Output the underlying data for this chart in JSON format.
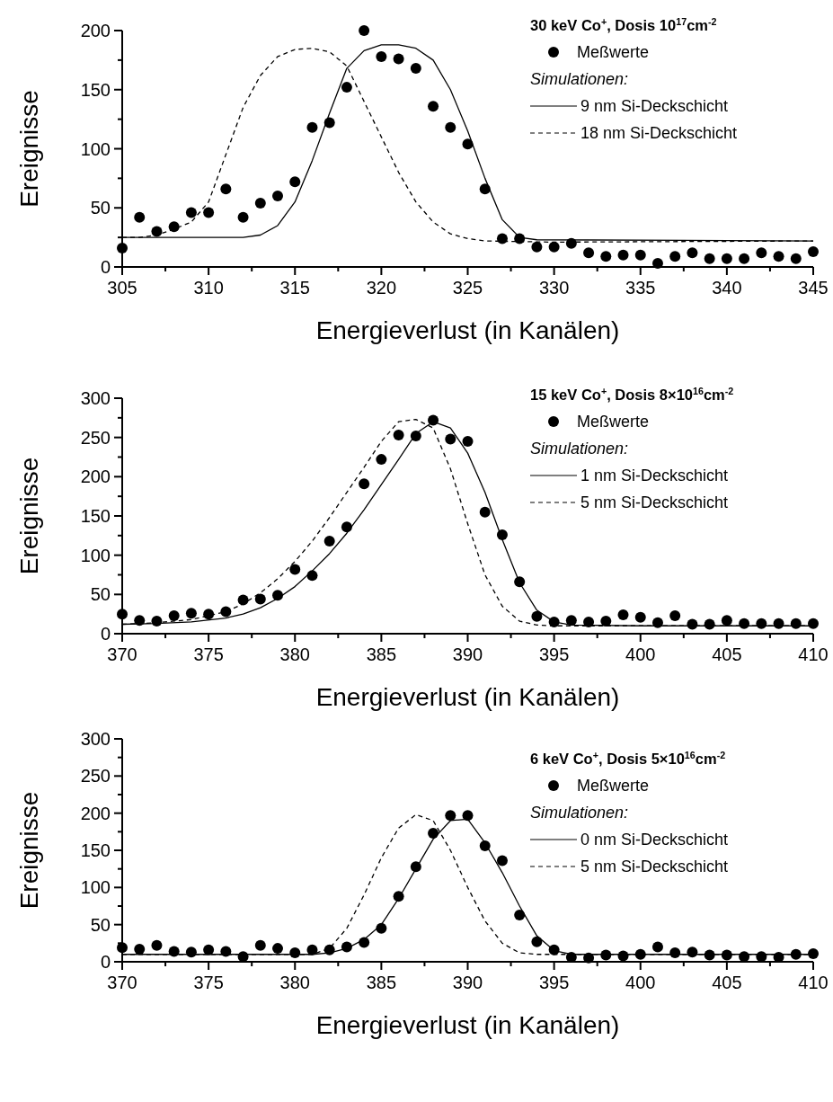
{
  "chart_data": [
    {
      "type": "scatter",
      "legend_title": "30 keV Co$^{+}$, Dosis 10$^{17}$cm$^{-2}$",
      "xlabel": "Energieverlust (in Kanälen)",
      "ylabel": "Ereignisse",
      "annotations": [
        "Simulationen:"
      ],
      "legend": "top right",
      "grid": false,
      "xlim": [
        305,
        345
      ],
      "ylim": [
        0,
        200
      ],
      "xticks": [
        305,
        {
          "value": 307.5,
          "label": null
        },
        310,
        {
          "value": 312.5,
          "label": null
        },
        315,
        {
          "value": 317.5,
          "label": null
        },
        320,
        {
          "value": 322.5,
          "label": null
        },
        325,
        {
          "value": 327.5,
          "label": null
        },
        330,
        {
          "value": 332.5,
          "label": null
        },
        335,
        {
          "value": 337.5,
          "label": null
        },
        340,
        {
          "value": 342.5,
          "label": null
        },
        345
      ],
      "yticks": [
        0,
        {
          "value": 25,
          "label": null
        },
        50,
        {
          "value": 75,
          "label": null
        },
        100,
        {
          "value": 125,
          "label": null
        },
        150,
        {
          "value": 175,
          "label": null
        },
        200
      ],
      "series": [
        {
          "name": "Meßwerte",
          "marker": "circle",
          "color": "#000000",
          "x": [
            305,
            306,
            307,
            308,
            309,
            310,
            311,
            312,
            313,
            314,
            315,
            316,
            317,
            318,
            319,
            320,
            321,
            322,
            323,
            324,
            325,
            326,
            327,
            328,
            329,
            330,
            331,
            332,
            333,
            334,
            335,
            336,
            337,
            338,
            339,
            340,
            341,
            342,
            343,
            344,
            345
          ],
          "values": [
            16,
            42,
            30,
            34,
            46,
            46,
            66,
            42,
            54,
            60,
            72,
            118,
            122,
            152,
            200,
            178,
            176,
            168,
            136,
            118,
            104,
            66,
            24,
            24,
            17,
            17,
            20,
            12,
            9,
            10,
            10,
            3,
            9,
            12,
            7,
            7,
            7,
            12,
            9,
            7,
            13
          ]
        },
        {
          "name": "9 nm Si-Deckschicht",
          "type": "line",
          "line_style": "solid",
          "marker": "none",
          "color": "#000000",
          "x": [
            305,
            312,
            313,
            314,
            315,
            316,
            317,
            318,
            319,
            320,
            321,
            322,
            323,
            324,
            325,
            326,
            327,
            328,
            329,
            345
          ],
          "values": [
            25,
            25,
            27,
            35,
            55,
            90,
            130,
            168,
            183,
            188,
            188,
            185,
            175,
            150,
            115,
            75,
            40,
            25,
            23,
            22
          ]
        },
        {
          "name": "18 nm Si-Deckschicht",
          "type": "line",
          "line_style": "dashed",
          "marker": "none",
          "color": "#000000",
          "x": [
            305,
            306,
            307,
            308,
            309,
            310,
            311,
            312,
            313,
            314,
            315,
            316,
            317,
            318,
            319,
            320,
            321,
            322,
            323,
            324,
            325,
            326,
            330,
            345
          ],
          "values": [
            25,
            25,
            27,
            32,
            38,
            55,
            95,
            135,
            162,
            178,
            184,
            185,
            182,
            170,
            140,
            110,
            80,
            55,
            38,
            28,
            24,
            22,
            21,
            22
          ]
        }
      ]
    },
    {
      "type": "scatter",
      "legend_title": "15 keV Co$^{+}$, Dosis 8×10$^{16}$cm$^{-2}$",
      "xlabel": "Energieverlust (in Kanälen)",
      "ylabel": "Ereignisse",
      "annotations": [
        "Simulationen:"
      ],
      "legend": "top right",
      "grid": false,
      "xlim": [
        370,
        410
      ],
      "ylim": [
        0,
        300
      ],
      "xticks": [
        370,
        {
          "value": 372.5,
          "label": null
        },
        375,
        {
          "value": 377.5,
          "label": null
        },
        380,
        {
          "value": 382.5,
          "label": null
        },
        385,
        {
          "value": 387.5,
          "label": null
        },
        390,
        {
          "value": 392.5,
          "label": null
        },
        395,
        {
          "value": 397.5,
          "label": null
        },
        400,
        {
          "value": 402.5,
          "label": null
        },
        405,
        {
          "value": 407.5,
          "label": null
        },
        410
      ],
      "yticks": [
        0,
        {
          "value": 25,
          "label": null
        },
        50,
        {
          "value": 75,
          "label": null
        },
        100,
        {
          "value": 125,
          "label": null
        },
        150,
        {
          "value": 175,
          "label": null
        },
        200,
        {
          "value": 225,
          "label": null
        },
        250,
        {
          "value": 275,
          "label": null
        },
        300
      ],
      "series": [
        {
          "name": "Meßwerte",
          "marker": "circle",
          "color": "#000000",
          "x": [
            370,
            371,
            372,
            373,
            374,
            375,
            376,
            377,
            378,
            379,
            380,
            381,
            382,
            383,
            384,
            385,
            386,
            387,
            388,
            389,
            390,
            391,
            392,
            393,
            394,
            395,
            396,
            397,
            398,
            399,
            400,
            401,
            402,
            403,
            404,
            405,
            406,
            407,
            408,
            409,
            410
          ],
          "values": [
            25,
            17,
            16,
            23,
            26,
            25,
            28,
            43,
            44,
            49,
            82,
            74,
            118,
            136,
            191,
            222,
            253,
            252,
            272,
            248,
            245,
            155,
            126,
            66,
            22,
            15,
            17,
            15,
            16,
            24,
            21,
            14,
            23,
            12,
            12,
            17,
            13,
            13,
            13,
            13,
            13
          ]
        },
        {
          "name": "1 nm Si-Deckschicht",
          "type": "line",
          "line_style": "solid",
          "marker": "none",
          "color": "#000000",
          "x": [
            370,
            372,
            374,
            376,
            377,
            378,
            379,
            380,
            381,
            382,
            383,
            384,
            385,
            386,
            387,
            388,
            389,
            390,
            391,
            392,
            393,
            394,
            395,
            396,
            400,
            410
          ],
          "values": [
            12,
            13,
            15,
            20,
            25,
            33,
            45,
            60,
            80,
            102,
            128,
            158,
            190,
            222,
            255,
            270,
            262,
            230,
            180,
            120,
            65,
            30,
            15,
            11,
            10,
            10
          ]
        },
        {
          "name": "5 nm Si-Deckschicht",
          "type": "line",
          "line_style": "dashed",
          "marker": "none",
          "color": "#000000",
          "x": [
            370,
            372,
            374,
            376,
            377,
            378,
            379,
            380,
            381,
            382,
            383,
            384,
            385,
            386,
            387,
            388,
            389,
            390,
            391,
            392,
            393,
            394,
            395,
            410
          ],
          "values": [
            12,
            14,
            18,
            28,
            38,
            52,
            70,
            92,
            118,
            148,
            180,
            212,
            245,
            270,
            273,
            262,
            210,
            140,
            75,
            35,
            16,
            11,
            10,
            10
          ]
        }
      ]
    },
    {
      "type": "scatter",
      "legend_title": "6 keV Co$^{+}$, Dosis 5×10$^{16}$cm$^{-2}$",
      "xlabel": "Energieverlust (in Kanälen)",
      "ylabel": "Ereignisse",
      "annotations": [
        "Simulationen:"
      ],
      "legend": "top right",
      "grid": false,
      "xlim": [
        370,
        410
      ],
      "ylim": [
        0,
        300
      ],
      "xticks": [
        370,
        {
          "value": 372.5,
          "label": null
        },
        375,
        {
          "value": 377.5,
          "label": null
        },
        380,
        {
          "value": 382.5,
          "label": null
        },
        385,
        {
          "value": 387.5,
          "label": null
        },
        390,
        {
          "value": 392.5,
          "label": null
        },
        395,
        {
          "value": 397.5,
          "label": null
        },
        400,
        {
          "value": 402.5,
          "label": null
        },
        405,
        {
          "value": 407.5,
          "label": null
        },
        410
      ],
      "yticks": [
        0,
        {
          "value": 25,
          "label": null
        },
        50,
        {
          "value": 75,
          "label": null
        },
        100,
        {
          "value": 125,
          "label": null
        },
        150,
        {
          "value": 175,
          "label": null
        },
        200,
        {
          "value": 225,
          "label": null
        },
        250,
        {
          "value": 275,
          "label": null
        },
        300
      ],
      "series": [
        {
          "name": "Meßwerte",
          "marker": "circle",
          "color": "#000000",
          "x": [
            370,
            371,
            372,
            373,
            374,
            375,
            376,
            377,
            378,
            379,
            380,
            381,
            382,
            383,
            384,
            385,
            386,
            387,
            388,
            389,
            390,
            391,
            392,
            393,
            394,
            395,
            396,
            397,
            398,
            399,
            400,
            401,
            402,
            403,
            404,
            405,
            406,
            407,
            408,
            409,
            410
          ],
          "values": [
            19,
            17,
            22,
            14,
            13,
            16,
            14,
            7,
            22,
            18,
            12,
            16,
            16,
            20,
            26,
            45,
            88,
            128,
            173,
            197,
            197,
            156,
            136,
            63,
            27,
            16,
            6,
            5,
            9,
            8,
            10,
            20,
            12,
            13,
            9,
            9,
            7,
            7,
            6,
            10,
            11
          ]
        },
        {
          "name": "0 nm Si-Deckschicht",
          "type": "line",
          "line_style": "solid",
          "marker": "none",
          "color": "#000000",
          "x": [
            370,
            381,
            382,
            383,
            384,
            385,
            386,
            387,
            388,
            389,
            390,
            391,
            392,
            393,
            394,
            395,
            396,
            410
          ],
          "values": [
            10,
            10,
            12,
            18,
            30,
            50,
            85,
            125,
            165,
            190,
            192,
            160,
            120,
            75,
            35,
            15,
            10,
            10
          ]
        },
        {
          "name": "5 nm Si-Deckschicht",
          "type": "line",
          "line_style": "dashed",
          "marker": "none",
          "color": "#000000",
          "x": [
            370,
            381,
            382,
            383,
            384,
            385,
            386,
            387,
            388,
            389,
            390,
            391,
            392,
            393,
            394,
            410
          ],
          "values": [
            10,
            10,
            18,
            45,
            90,
            140,
            180,
            198,
            190,
            150,
            100,
            55,
            25,
            12,
            10,
            10
          ]
        }
      ]
    }
  ]
}
